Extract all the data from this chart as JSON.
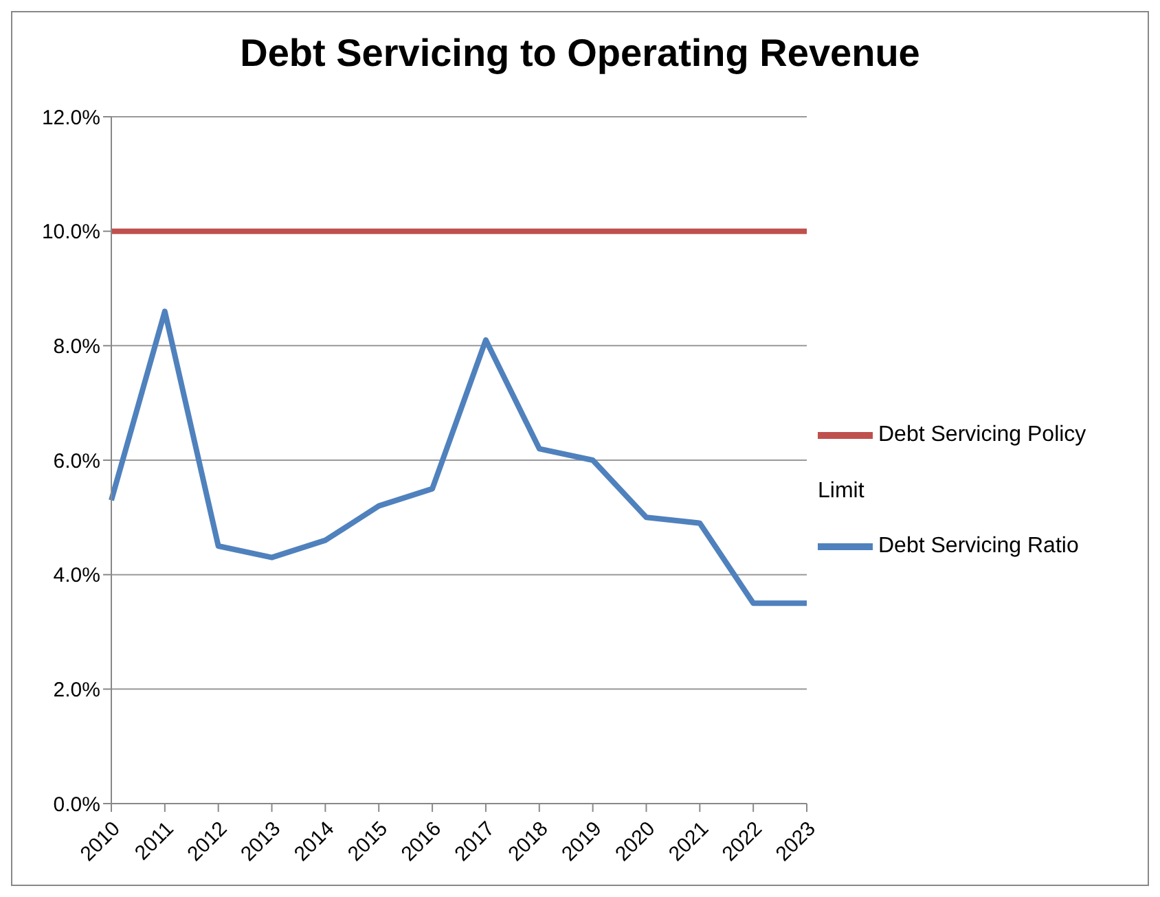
{
  "chart_data": {
    "type": "line",
    "title": "Debt Servicing to Operating Revenue",
    "categories": [
      "2010",
      "2011",
      "2012",
      "2013",
      "2014",
      "2015",
      "2016",
      "2017",
      "2018",
      "2019",
      "2020",
      "2021",
      "2022",
      "2023"
    ],
    "series": [
      {
        "name": "Debt Servicing Ratio",
        "color": "#4f81bd",
        "values": [
          5.3,
          8.6,
          4.5,
          4.3,
          4.6,
          5.2,
          5.5,
          8.1,
          6.2,
          6.0,
          5.0,
          4.9,
          3.5,
          3.5
        ]
      },
      {
        "name": "Debt Servicing Policy Limit",
        "color": "#c0504d",
        "values": [
          10,
          10,
          10,
          10,
          10,
          10,
          10,
          10,
          10,
          10,
          10,
          10,
          10,
          10
        ]
      }
    ],
    "ylim": [
      0,
      12
    ],
    "yticks": [
      {
        "value": 0,
        "label": "0.0%"
      },
      {
        "value": 2,
        "label": "2.0%"
      },
      {
        "value": 4,
        "label": "4.0%"
      },
      {
        "value": 6,
        "label": "6.0%"
      },
      {
        "value": 8,
        "label": "8.0%"
      },
      {
        "value": 10,
        "label": "10.0%"
      },
      {
        "value": 12,
        "label": "12.0%"
      }
    ],
    "grid": "y",
    "legend": "right",
    "marker": "none",
    "line_style": "solid"
  }
}
